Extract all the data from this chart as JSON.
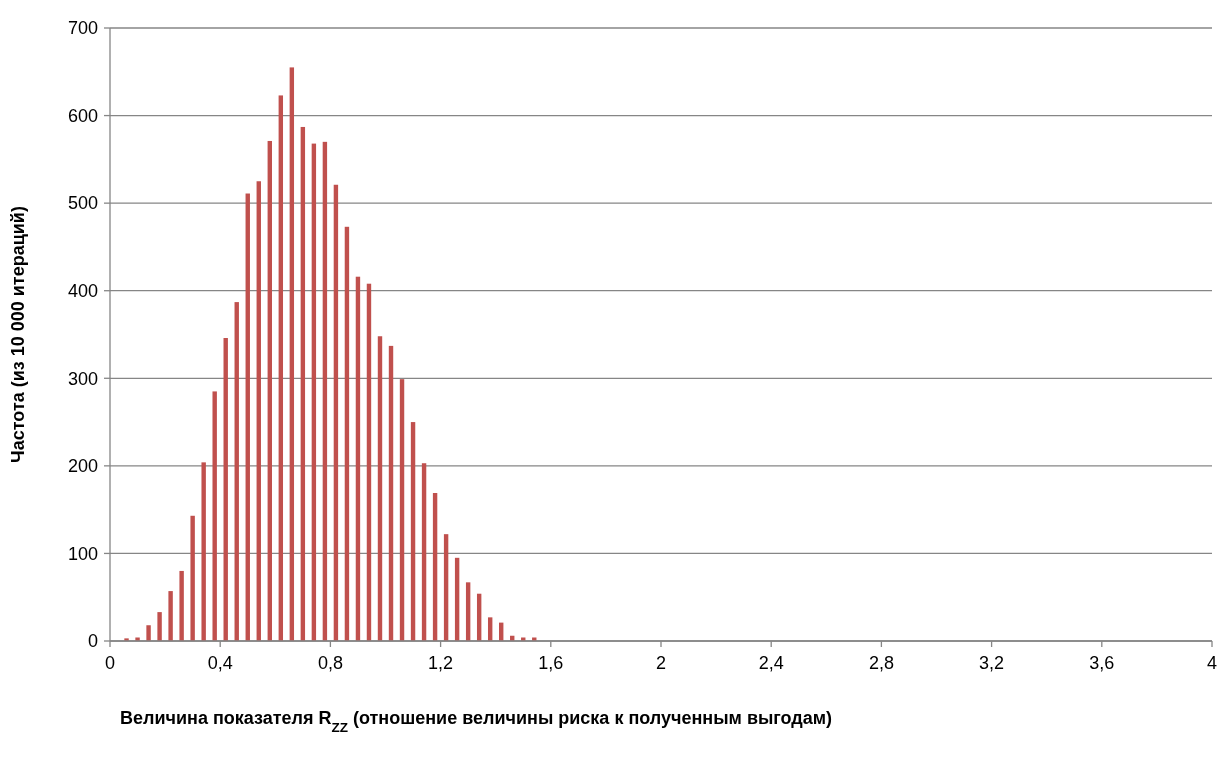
{
  "chart_data": {
    "type": "histogram",
    "xlabel": "Величина показателя R$_{ZZ}$ (отношение величины риска к полученным выгодам)",
    "ylabel": "Частота (из 10 000 итераций)",
    "color": "#c0504d",
    "bins": [
      0.04,
      0.08,
      0.12,
      0.16,
      0.2,
      0.24,
      0.28,
      0.32,
      0.36,
      0.4,
      0.44,
      0.48,
      0.52,
      0.56,
      0.6,
      0.64,
      0.68,
      0.72,
      0.76,
      0.8,
      0.84,
      0.88,
      0.92,
      0.96,
      1,
      1.04,
      1.08,
      1.12,
      1.16,
      1.2,
      1.24,
      1.28,
      1.32,
      1.36,
      1.4,
      1.44,
      1.48,
      1.52,
      1.56
    ],
    "values": [
      3,
      4,
      18,
      33,
      57,
      80,
      143,
      204,
      285,
      346,
      387,
      511,
      525,
      571,
      623,
      655,
      587,
      568,
      570,
      521,
      473,
      416,
      408,
      348,
      337,
      299,
      250,
      203,
      169,
      122,
      95,
      67,
      54,
      27,
      21,
      6,
      4,
      4
    ],
    "xlim": [
      0,
      4
    ],
    "xticks": [
      0,
      {
        "value": 0.4,
        "label": "0,4"
      },
      {
        "value": 0.8,
        "label": "0,8"
      },
      {
        "value": 1.2,
        "label": "1,2"
      },
      {
        "value": 1.6,
        "label": "1,6"
      },
      2,
      {
        "value": 2.4,
        "label": "2,4"
      },
      {
        "value": 2.8,
        "label": "2,8"
      },
      {
        "value": 3.2,
        "label": "3,2"
      },
      {
        "value": 3.6,
        "label": "3,6"
      },
      4
    ],
    "ylim": [
      0,
      700
    ],
    "yticks": [
      0,
      100,
      200,
      300,
      400,
      500,
      600,
      700
    ],
    "grid": "y"
  }
}
